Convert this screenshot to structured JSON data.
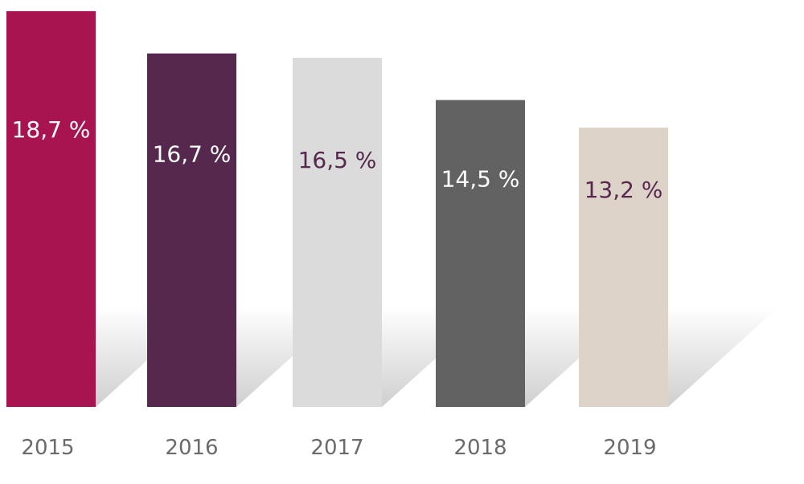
{
  "chart_data": {
    "type": "bar",
    "categories": [
      "2015",
      "2016",
      "2017",
      "2018",
      "2019"
    ],
    "values": [
      18.7,
      16.7,
      16.5,
      14.5,
      13.2
    ],
    "value_labels": [
      "18,7 %",
      "16,7 %",
      "16,5 %",
      "14,5 %",
      "13,2 %"
    ],
    "bar_colors": [
      "#a8144f",
      "#57284e",
      "#dbdbdb",
      "#626262",
      "#ddd3c9"
    ],
    "label_colors": [
      "#ffffff",
      "#ffffff",
      "#57284e",
      "#ffffff",
      "#57284e"
    ],
    "title": "",
    "xlabel": "",
    "ylabel": "",
    "grid": false,
    "legend": "none"
  }
}
